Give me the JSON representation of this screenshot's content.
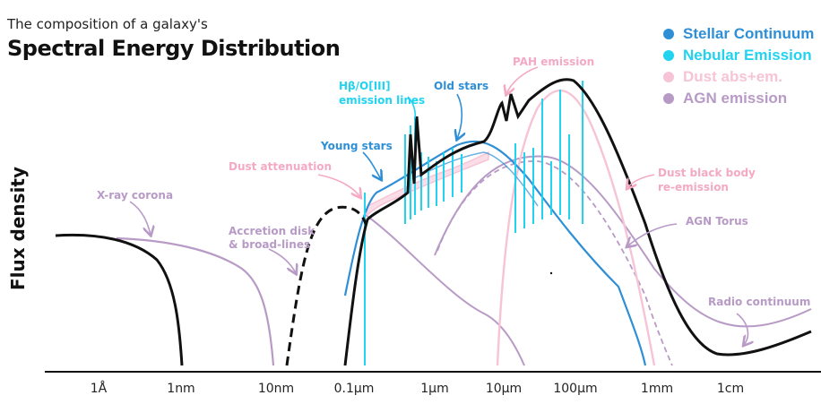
{
  "header": {
    "subtitle": "The composition of a galaxy's",
    "title": "Spectral Energy Distribution"
  },
  "legend": [
    {
      "label": "Stellar Continuum",
      "color": "#2f8fd6"
    },
    {
      "label": "Nebular Emission",
      "color": "#22d3f0"
    },
    {
      "label": "Dust abs+em.",
      "color": "#f6c4d6"
    },
    {
      "label": "AGN emission",
      "color": "#b89ac6"
    }
  ],
  "axis": {
    "ylabel": "Flux density",
    "ticks": [
      "1Å",
      "1nm",
      "10nm",
      "0.1µm",
      "1µm",
      "10µm",
      "100µm",
      "1mm",
      "1cm"
    ]
  },
  "annotations": {
    "xray": "X-ray corona",
    "accretion": [
      "Accretion disk",
      "& broad-lines"
    ],
    "dust_att": "Dust attenuation",
    "young": "Young stars",
    "hbeta": [
      "Hβ/O[III]",
      "emission lines"
    ],
    "old": "Old stars",
    "pah": "PAH emission",
    "dust_bb": [
      "Dust black body",
      "re-emission"
    ],
    "torus": "AGN Torus",
    "radio": "Radio continuum"
  },
  "colors": {
    "stellar": "#2f8fd6",
    "nebular": "#22d3f0",
    "dust": "#f6c4d6",
    "dust_text": "#f4a9c4",
    "agn": "#b89ac6",
    "total": "#111111"
  }
}
